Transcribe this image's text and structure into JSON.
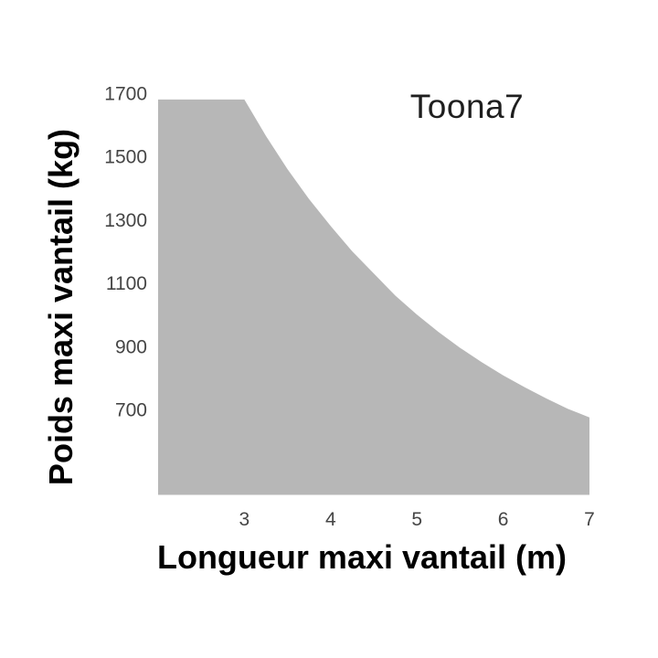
{
  "chart_data": {
    "type": "area",
    "title": "Toona7",
    "xlabel": "Longueur maxi vantail (m)",
    "ylabel": "Poids maxi vantail (kg)",
    "x_ticks": [
      3,
      4,
      5,
      6,
      7
    ],
    "y_ticks": [
      1700,
      1500,
      1300,
      1100,
      900,
      700
    ],
    "xlim": [
      2,
      7
    ],
    "ylim": [
      430,
      1700
    ],
    "grid": false,
    "legend": false,
    "background_color": "#ffffff",
    "area_color": "#b7b7b7",
    "tick_color": "#454545",
    "title_color": "#1e1e1e",
    "label_color": "#000000",
    "curve": {
      "x": [
        2,
        3,
        3.25,
        3.5,
        3.75,
        4,
        4.25,
        4.5,
        4.75,
        5,
        5.25,
        5.5,
        5.75,
        6,
        6.25,
        6.5,
        6.75,
        7
      ],
      "y": [
        1680,
        1680,
        1565,
        1460,
        1365,
        1280,
        1200,
        1130,
        1060,
        1000,
        945,
        895,
        850,
        808,
        770,
        735,
        702,
        675
      ]
    }
  }
}
